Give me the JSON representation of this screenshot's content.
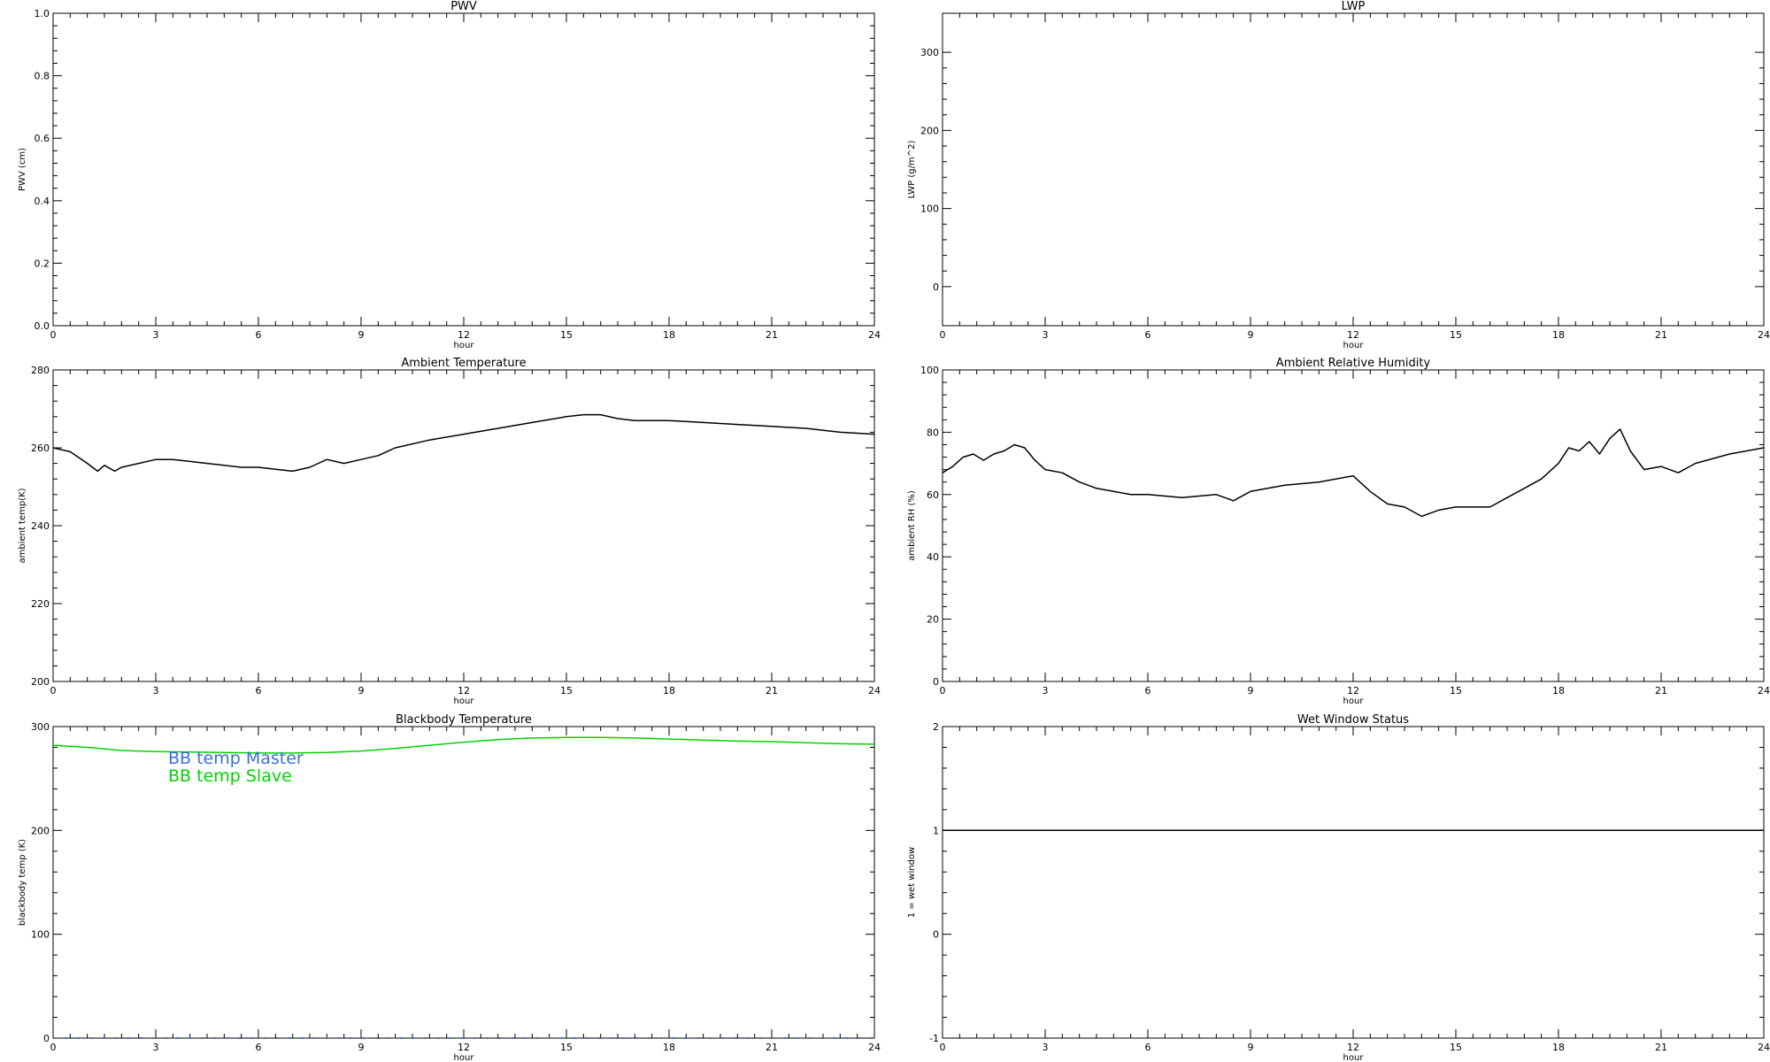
{
  "chart_data": [
    {
      "id": "pwv",
      "type": "line",
      "title": "PWV",
      "xlabel": "hour",
      "ylabel": "PWV (cm)",
      "xlim": [
        0,
        24
      ],
      "ylim": [
        0,
        1
      ],
      "xticks": [
        0,
        3,
        6,
        9,
        12,
        15,
        18,
        21,
        24
      ],
      "yticks": [
        0,
        0.2,
        0.4,
        0.6,
        0.8,
        1.0
      ],
      "ytick_labels": [
        "0.0",
        "0.2",
        "0.4",
        "0.6",
        "0.8",
        "1.0"
      ],
      "series": []
    },
    {
      "id": "lwp",
      "type": "line",
      "title": "LWP",
      "xlabel": "hour",
      "ylabel": "LWP (g/m^2)",
      "xlim": [
        0,
        24
      ],
      "ylim": [
        -50,
        350
      ],
      "xticks": [
        0,
        3,
        6,
        9,
        12,
        15,
        18,
        21,
        24
      ],
      "yticks": [
        0,
        100,
        200,
        300
      ],
      "ytick_labels": [
        "0",
        "100",
        "200",
        "300"
      ],
      "series": []
    },
    {
      "id": "ambient-temperature",
      "type": "line",
      "title": "Ambient Temperature",
      "xlabel": "hour",
      "ylabel": "ambient temp(K)",
      "xlim": [
        0,
        24
      ],
      "ylim": [
        200,
        280
      ],
      "xticks": [
        0,
        3,
        6,
        9,
        12,
        15,
        18,
        21,
        24
      ],
      "yticks": [
        200,
        220,
        240,
        260,
        280
      ],
      "ytick_labels": [
        "200",
        "220",
        "240",
        "260",
        "280"
      ],
      "series": [
        {
          "color": "#000000",
          "x": [
            0,
            0.5,
            1,
            1.3,
            1.5,
            1.8,
            2,
            2.5,
            3,
            3.5,
            4,
            4.5,
            5,
            5.5,
            6,
            6.5,
            7,
            7.5,
            8,
            8.5,
            9,
            9.5,
            10,
            11,
            12,
            13,
            14,
            15,
            15.5,
            16,
            16.5,
            17,
            18,
            19,
            20,
            21,
            22,
            23,
            24
          ],
          "y": [
            260,
            259,
            256,
            254,
            255.5,
            254,
            255,
            256,
            257,
            257,
            256.5,
            256,
            255.5,
            255,
            255,
            254.5,
            254,
            255,
            257,
            256,
            257,
            258,
            260,
            262,
            263.5,
            265,
            266.5,
            268,
            268.5,
            268.5,
            267.5,
            267,
            267,
            266.5,
            266,
            265.5,
            265,
            264,
            263.5
          ]
        }
      ]
    },
    {
      "id": "ambient-relative-humidity",
      "type": "line",
      "title": "Ambient Relative Humidity",
      "xlabel": "hour",
      "ylabel": "ambient RH (%)",
      "xlim": [
        0,
        24
      ],
      "ylim": [
        0,
        100
      ],
      "xticks": [
        0,
        3,
        6,
        9,
        12,
        15,
        18,
        21,
        24
      ],
      "yticks": [
        0,
        20,
        40,
        60,
        80,
        100
      ],
      "ytick_labels": [
        "0",
        "20",
        "40",
        "60",
        "80",
        "100"
      ],
      "series": [
        {
          "color": "#000000",
          "x": [
            0,
            0.3,
            0.6,
            0.9,
            1.2,
            1.5,
            1.8,
            2.1,
            2.4,
            2.7,
            3,
            3.5,
            4,
            4.5,
            5,
            5.5,
            6,
            7,
            8,
            8.5,
            9,
            10,
            11,
            12,
            12.5,
            13,
            13.5,
            14,
            14.5,
            15,
            16,
            16.5,
            17,
            17.5,
            18,
            18.3,
            18.6,
            18.9,
            19.2,
            19.5,
            19.8,
            20.1,
            20.5,
            21,
            21.5,
            22,
            23,
            24
          ],
          "y": [
            67,
            69,
            72,
            73,
            71,
            73,
            74,
            76,
            75,
            71,
            68,
            67,
            64,
            62,
            61,
            60,
            60,
            59,
            60,
            58,
            61,
            63,
            64,
            66,
            61,
            57,
            56,
            53,
            55,
            56,
            56,
            59,
            62,
            65,
            70,
            75,
            74,
            77,
            73,
            78,
            81,
            74,
            68,
            69,
            67,
            70,
            73,
            75
          ]
        }
      ]
    },
    {
      "id": "blackbody-temperature",
      "type": "line",
      "title": "Blackbody Temperature",
      "xlabel": "hour",
      "ylabel": "blackbody temp (K)",
      "xlim": [
        0,
        24
      ],
      "ylim": [
        0,
        300
      ],
      "xticks": [
        0,
        3,
        6,
        9,
        12,
        15,
        18,
        21,
        24
      ],
      "yticks": [
        0,
        100,
        200,
        300
      ],
      "ytick_labels": [
        "0",
        "100",
        "200",
        "300"
      ],
      "legend": "top-left",
      "series": [
        {
          "name": "BB temp Master",
          "color": "#3b6fd8",
          "dashed": true,
          "x": [
            0,
            24
          ],
          "y": [
            0,
            0
          ]
        },
        {
          "name": "BB temp Slave",
          "color": "#00d400",
          "dashed": false,
          "x": [
            0,
            1,
            2,
            3,
            4,
            5,
            6,
            7,
            8,
            9,
            10,
            11,
            12,
            13,
            14,
            15,
            16,
            17,
            18,
            19,
            20,
            21,
            22,
            23,
            24
          ],
          "y": [
            282,
            280,
            277,
            276,
            275.5,
            275,
            274.5,
            274.5,
            275,
            276.5,
            279,
            282,
            285,
            287.5,
            289,
            289.5,
            289.5,
            289,
            288,
            287,
            286,
            285.5,
            284.5,
            283.5,
            283
          ]
        }
      ]
    },
    {
      "id": "wet-window-status",
      "type": "line",
      "title": "Wet Window Status",
      "xlabel": "hour",
      "ylabel": "1 = wet window",
      "xlim": [
        0,
        24
      ],
      "ylim": [
        -1,
        2
      ],
      "xticks": [
        0,
        3,
        6,
        9,
        12,
        15,
        18,
        21,
        24
      ],
      "yticks": [
        -1,
        0,
        1,
        2
      ],
      "ytick_labels": [
        "-1",
        "0",
        "1",
        "2"
      ],
      "series": [
        {
          "color": "#000000",
          "x": [
            0,
            24
          ],
          "y": [
            1,
            1
          ]
        }
      ]
    }
  ]
}
